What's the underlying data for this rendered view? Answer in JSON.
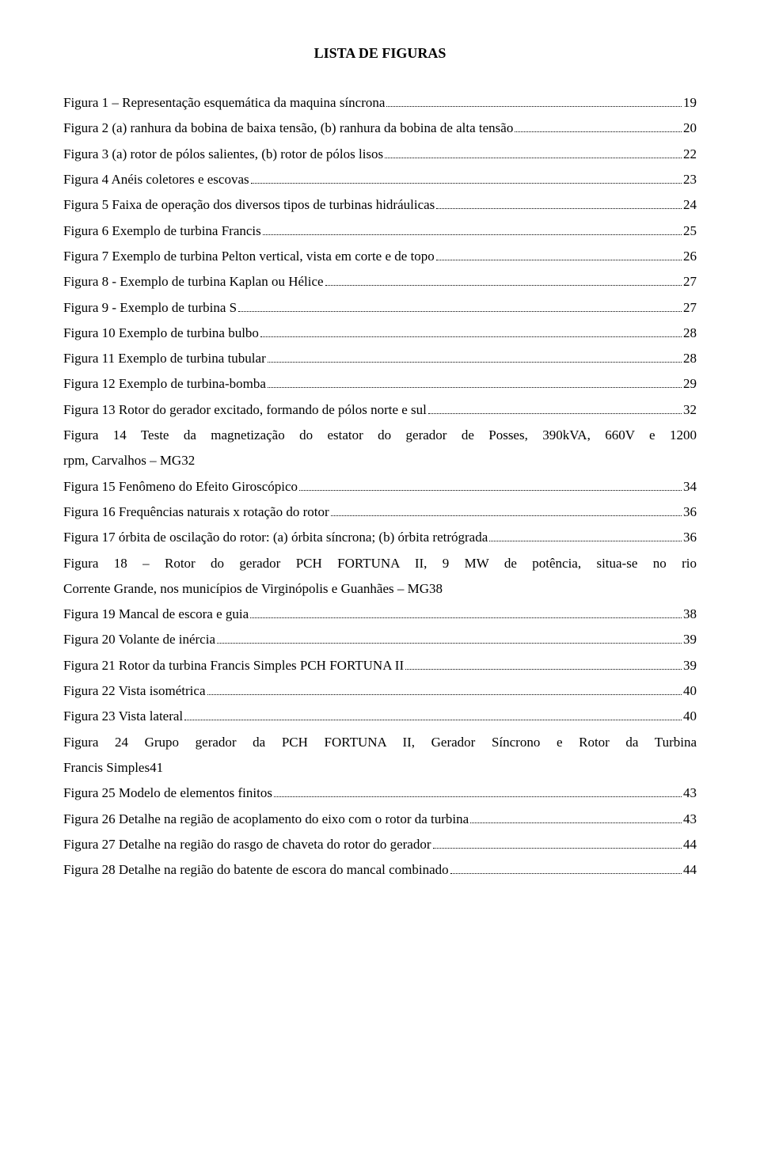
{
  "title": "LISTA DE FIGURAS",
  "entries": [
    {
      "label": "Figura 1 – Representação esquemática da maquina síncrona",
      "page": "19",
      "multi": false
    },
    {
      "label": "Figura 2 (a) ranhura da bobina de baixa tensão, (b) ranhura da bobina de alta tensão",
      "page": "20",
      "multi": false
    },
    {
      "label": "Figura 3 (a) rotor de pólos salientes, (b) rotor de pólos lisos",
      "page": "22",
      "multi": false
    },
    {
      "label": "Figura 4 Anéis coletores e escovas",
      "page": "23",
      "multi": false
    },
    {
      "label": "Figura 5 Faixa de operação dos diversos tipos de turbinas hidráulicas",
      "page": "24",
      "multi": false
    },
    {
      "label": "Figura 6 Exemplo de turbina Francis",
      "page": "25",
      "multi": false
    },
    {
      "label": "Figura 7 Exemplo de turbina Pelton vertical, vista em corte e de topo",
      "page": "26",
      "multi": false
    },
    {
      "label": "Figura 8 - Exemplo de turbina Kaplan ou Hélice",
      "page": "27",
      "multi": false
    },
    {
      "label": "Figura 9 - Exemplo de turbina S",
      "page": "27",
      "multi": false
    },
    {
      "label": "Figura 10 Exemplo de turbina bulbo",
      "page": "28",
      "multi": false
    },
    {
      "label": "Figura 11 Exemplo de turbina tubular",
      "page": "28",
      "multi": false
    },
    {
      "label": "Figura 12 Exemplo de turbina-bomba",
      "page": "29",
      "multi": false
    },
    {
      "label": "Figura 13 Rotor do gerador excitado, formando de pólos norte e sul",
      "page": "32",
      "multi": false
    },
    {
      "label_line1": "Figura 14 Teste da magnetização do estator do gerador de Posses, 390kVA, 660V e 1200",
      "label_line2": "rpm, Carvalhos – MG",
      "page": "32",
      "multi": true
    },
    {
      "label": "Figura 15 Fenômeno do Efeito Giroscópico",
      "page": "34",
      "multi": false
    },
    {
      "label": "Figura 16 Frequências naturais x rotação do rotor",
      "page": "36",
      "multi": false
    },
    {
      "label": "Figura 17 órbita de oscilação do rotor: (a) órbita síncrona; (b) órbita retrógrada",
      "page": "36",
      "multi": false
    },
    {
      "label_line1": "Figura 18 – Rotor do gerador PCH FORTUNA II, 9 MW de potência, situa-se no rio",
      "label_line2": "Corrente Grande, nos municípios de Virginópolis e Guanhães – MG",
      "page": "38",
      "multi": true
    },
    {
      "label": "Figura 19 Mancal de escora e guia",
      "page": "38",
      "multi": false
    },
    {
      "label": "Figura 20 Volante de inércia",
      "page": "39",
      "multi": false
    },
    {
      "label": "Figura 21 Rotor da turbina Francis Simples PCH FORTUNA II",
      "page": "39",
      "multi": false
    },
    {
      "label": "Figura 22 Vista isométrica",
      "page": "40",
      "multi": false
    },
    {
      "label": "Figura 23 Vista lateral",
      "page": "40",
      "multi": false
    },
    {
      "label_line1": "Figura 24 Grupo gerador da PCH FORTUNA II, Gerador Síncrono e Rotor da Turbina",
      "label_line2": "Francis Simples",
      "page": "41",
      "multi": true
    },
    {
      "label": "Figura 25 Modelo de elementos finitos",
      "page": "43",
      "multi": false
    },
    {
      "label": "Figura 26 Detalhe na região de acoplamento do eixo com o rotor da turbina",
      "page": "43",
      "multi": false
    },
    {
      "label": "Figura 27 Detalhe na região do rasgo de chaveta do rotor do gerador",
      "page": "44",
      "multi": false
    },
    {
      "label": "Figura 28 Detalhe na região do batente de escora do mancal combinado",
      "page": "44",
      "multi": false
    }
  ]
}
